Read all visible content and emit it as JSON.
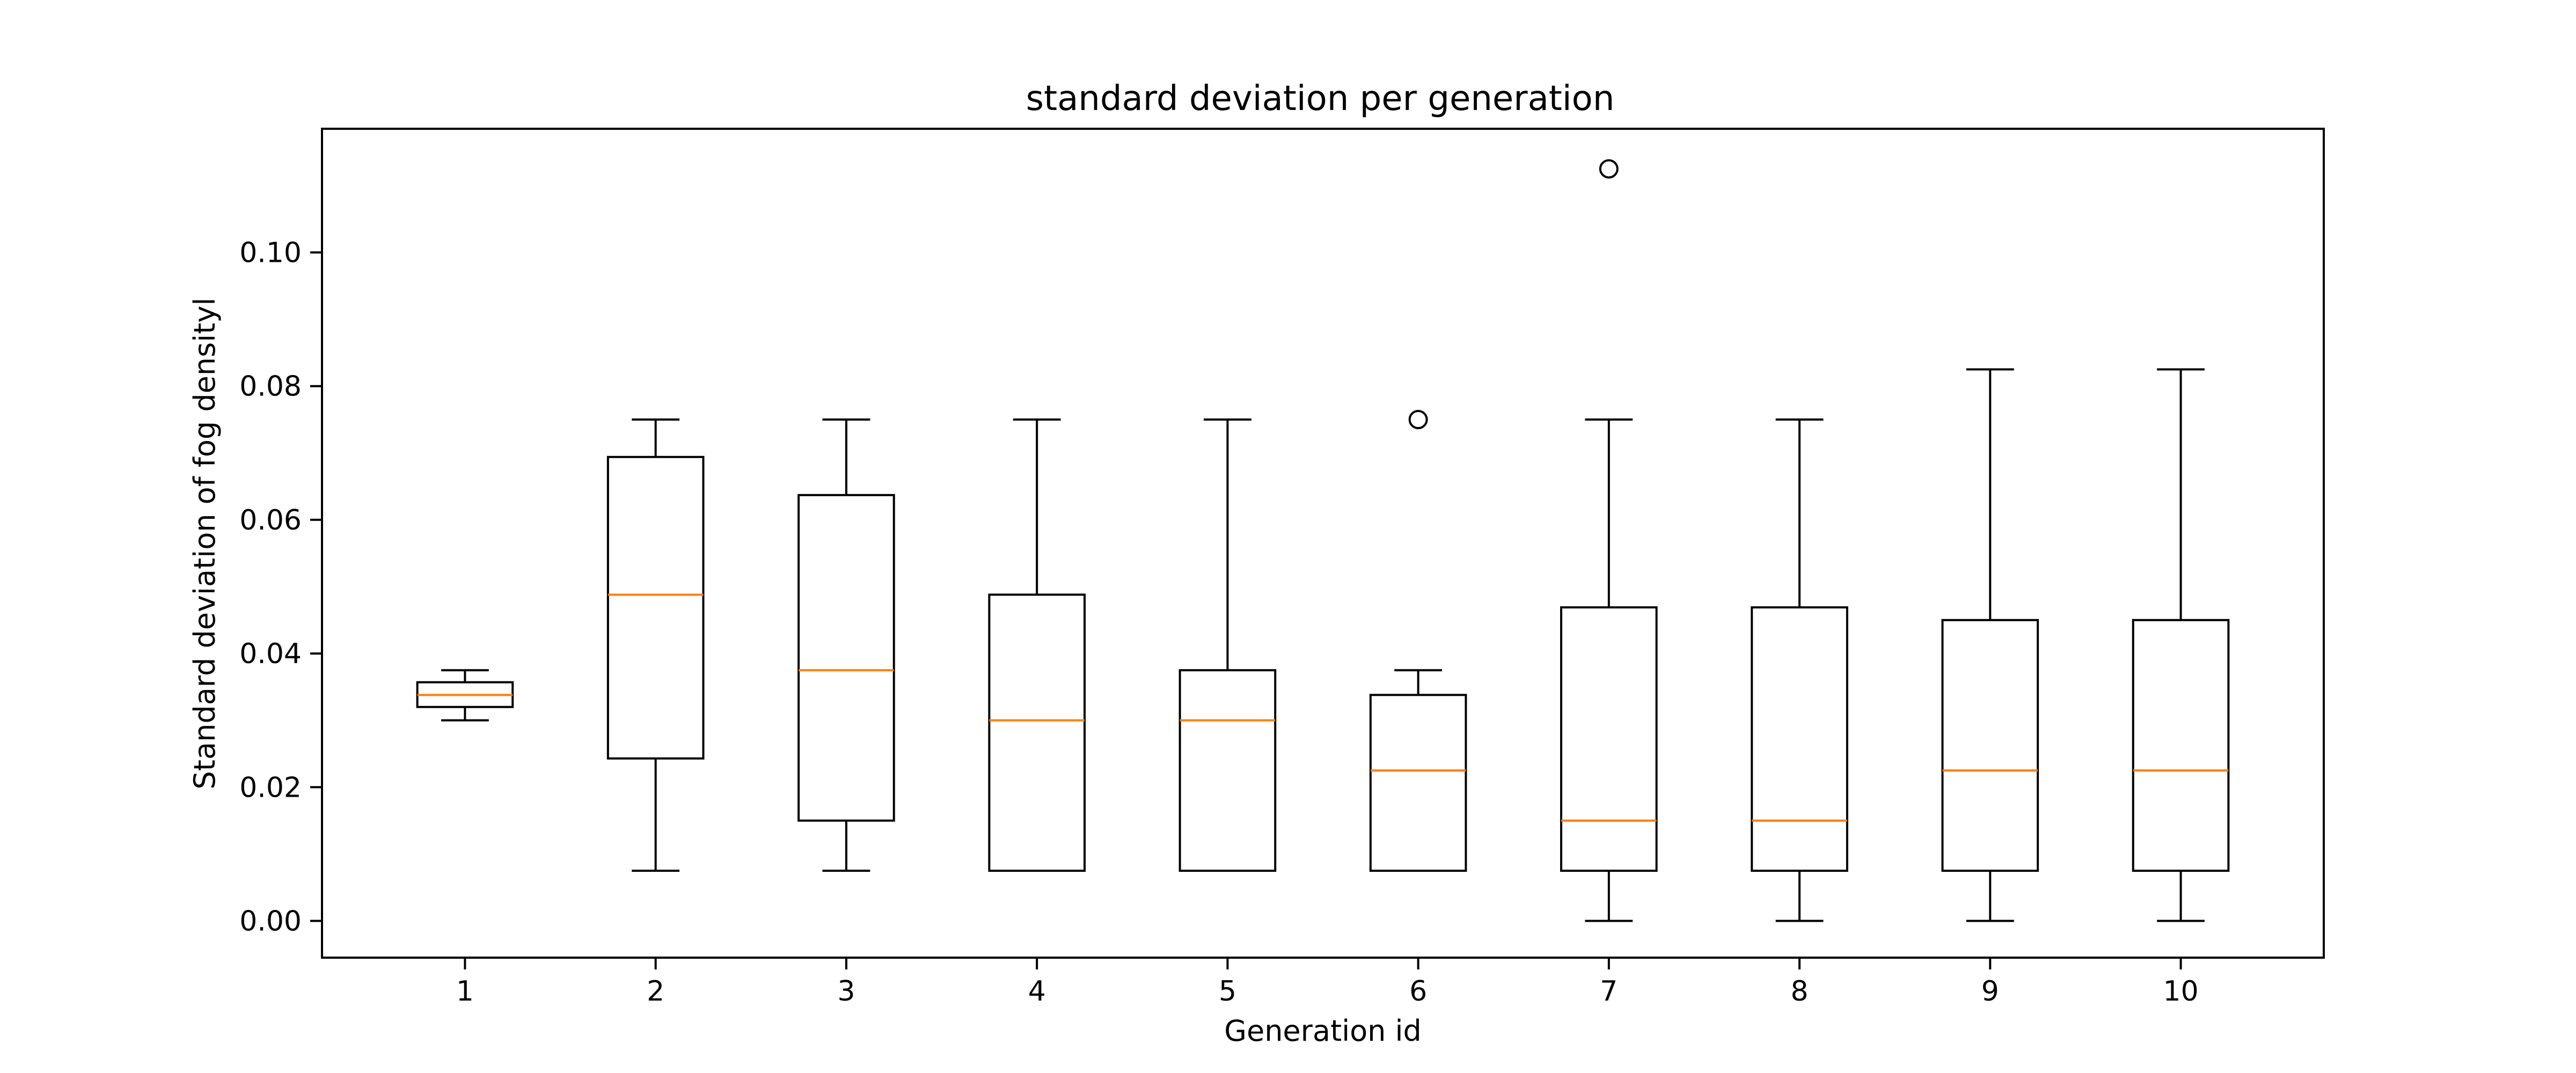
{
  "chart_data": {
    "type": "box",
    "title": "standard deviation per generation",
    "xlabel": "Generation id",
    "ylabel": "Standard deviation of fog densityl",
    "categories": [
      "1",
      "2",
      "3",
      "4",
      "5",
      "6",
      "7",
      "8",
      "9",
      "10"
    ],
    "ylim": [
      -0.0055,
      0.1185
    ],
    "yticks": [
      "0.00",
      "0.02",
      "0.04",
      "0.06",
      "0.08",
      "0.10"
    ],
    "ytick_values": [
      0.0,
      0.02,
      0.04,
      0.06,
      0.08,
      0.1
    ],
    "grid": false,
    "box_color": "#000000",
    "median_color": "#ff7f0e",
    "boxes": [
      {
        "category": "1",
        "whisker_low": 0.03,
        "q1": 0.032,
        "median": 0.0338,
        "q3": 0.0357,
        "whisker_high": 0.0375,
        "outliers": []
      },
      {
        "category": "2",
        "whisker_low": 0.0075,
        "q1": 0.0243,
        "median": 0.0488,
        "q3": 0.0694,
        "whisker_high": 0.075,
        "outliers": []
      },
      {
        "category": "3",
        "whisker_low": 0.0075,
        "q1": 0.015,
        "median": 0.0375,
        "q3": 0.0637,
        "whisker_high": 0.075,
        "outliers": []
      },
      {
        "category": "4",
        "whisker_low": 0.0075,
        "q1": 0.0075,
        "median": 0.03,
        "q3": 0.0488,
        "whisker_high": 0.075,
        "outliers": []
      },
      {
        "category": "5",
        "whisker_low": 0.0075,
        "q1": 0.0075,
        "median": 0.03,
        "q3": 0.0375,
        "whisker_high": 0.075,
        "outliers": []
      },
      {
        "category": "6",
        "whisker_low": 0.0075,
        "q1": 0.0075,
        "median": 0.0225,
        "q3": 0.0338,
        "whisker_high": 0.0375,
        "outliers": [
          0.075
        ]
      },
      {
        "category": "7",
        "whisker_low": 0.0,
        "q1": 0.0075,
        "median": 0.015,
        "q3": 0.0469,
        "whisker_high": 0.075,
        "outliers": [
          0.1125
        ]
      },
      {
        "category": "8",
        "whisker_low": 0.0,
        "q1": 0.0075,
        "median": 0.015,
        "q3": 0.0469,
        "whisker_high": 0.075,
        "outliers": []
      },
      {
        "category": "9",
        "whisker_low": 0.0,
        "q1": 0.0075,
        "median": 0.0225,
        "q3": 0.045,
        "whisker_high": 0.0825,
        "outliers": []
      },
      {
        "category": "10",
        "whisker_low": 0.0,
        "q1": 0.0075,
        "median": 0.0225,
        "q3": 0.045,
        "whisker_high": 0.0825,
        "outliers": []
      }
    ]
  }
}
